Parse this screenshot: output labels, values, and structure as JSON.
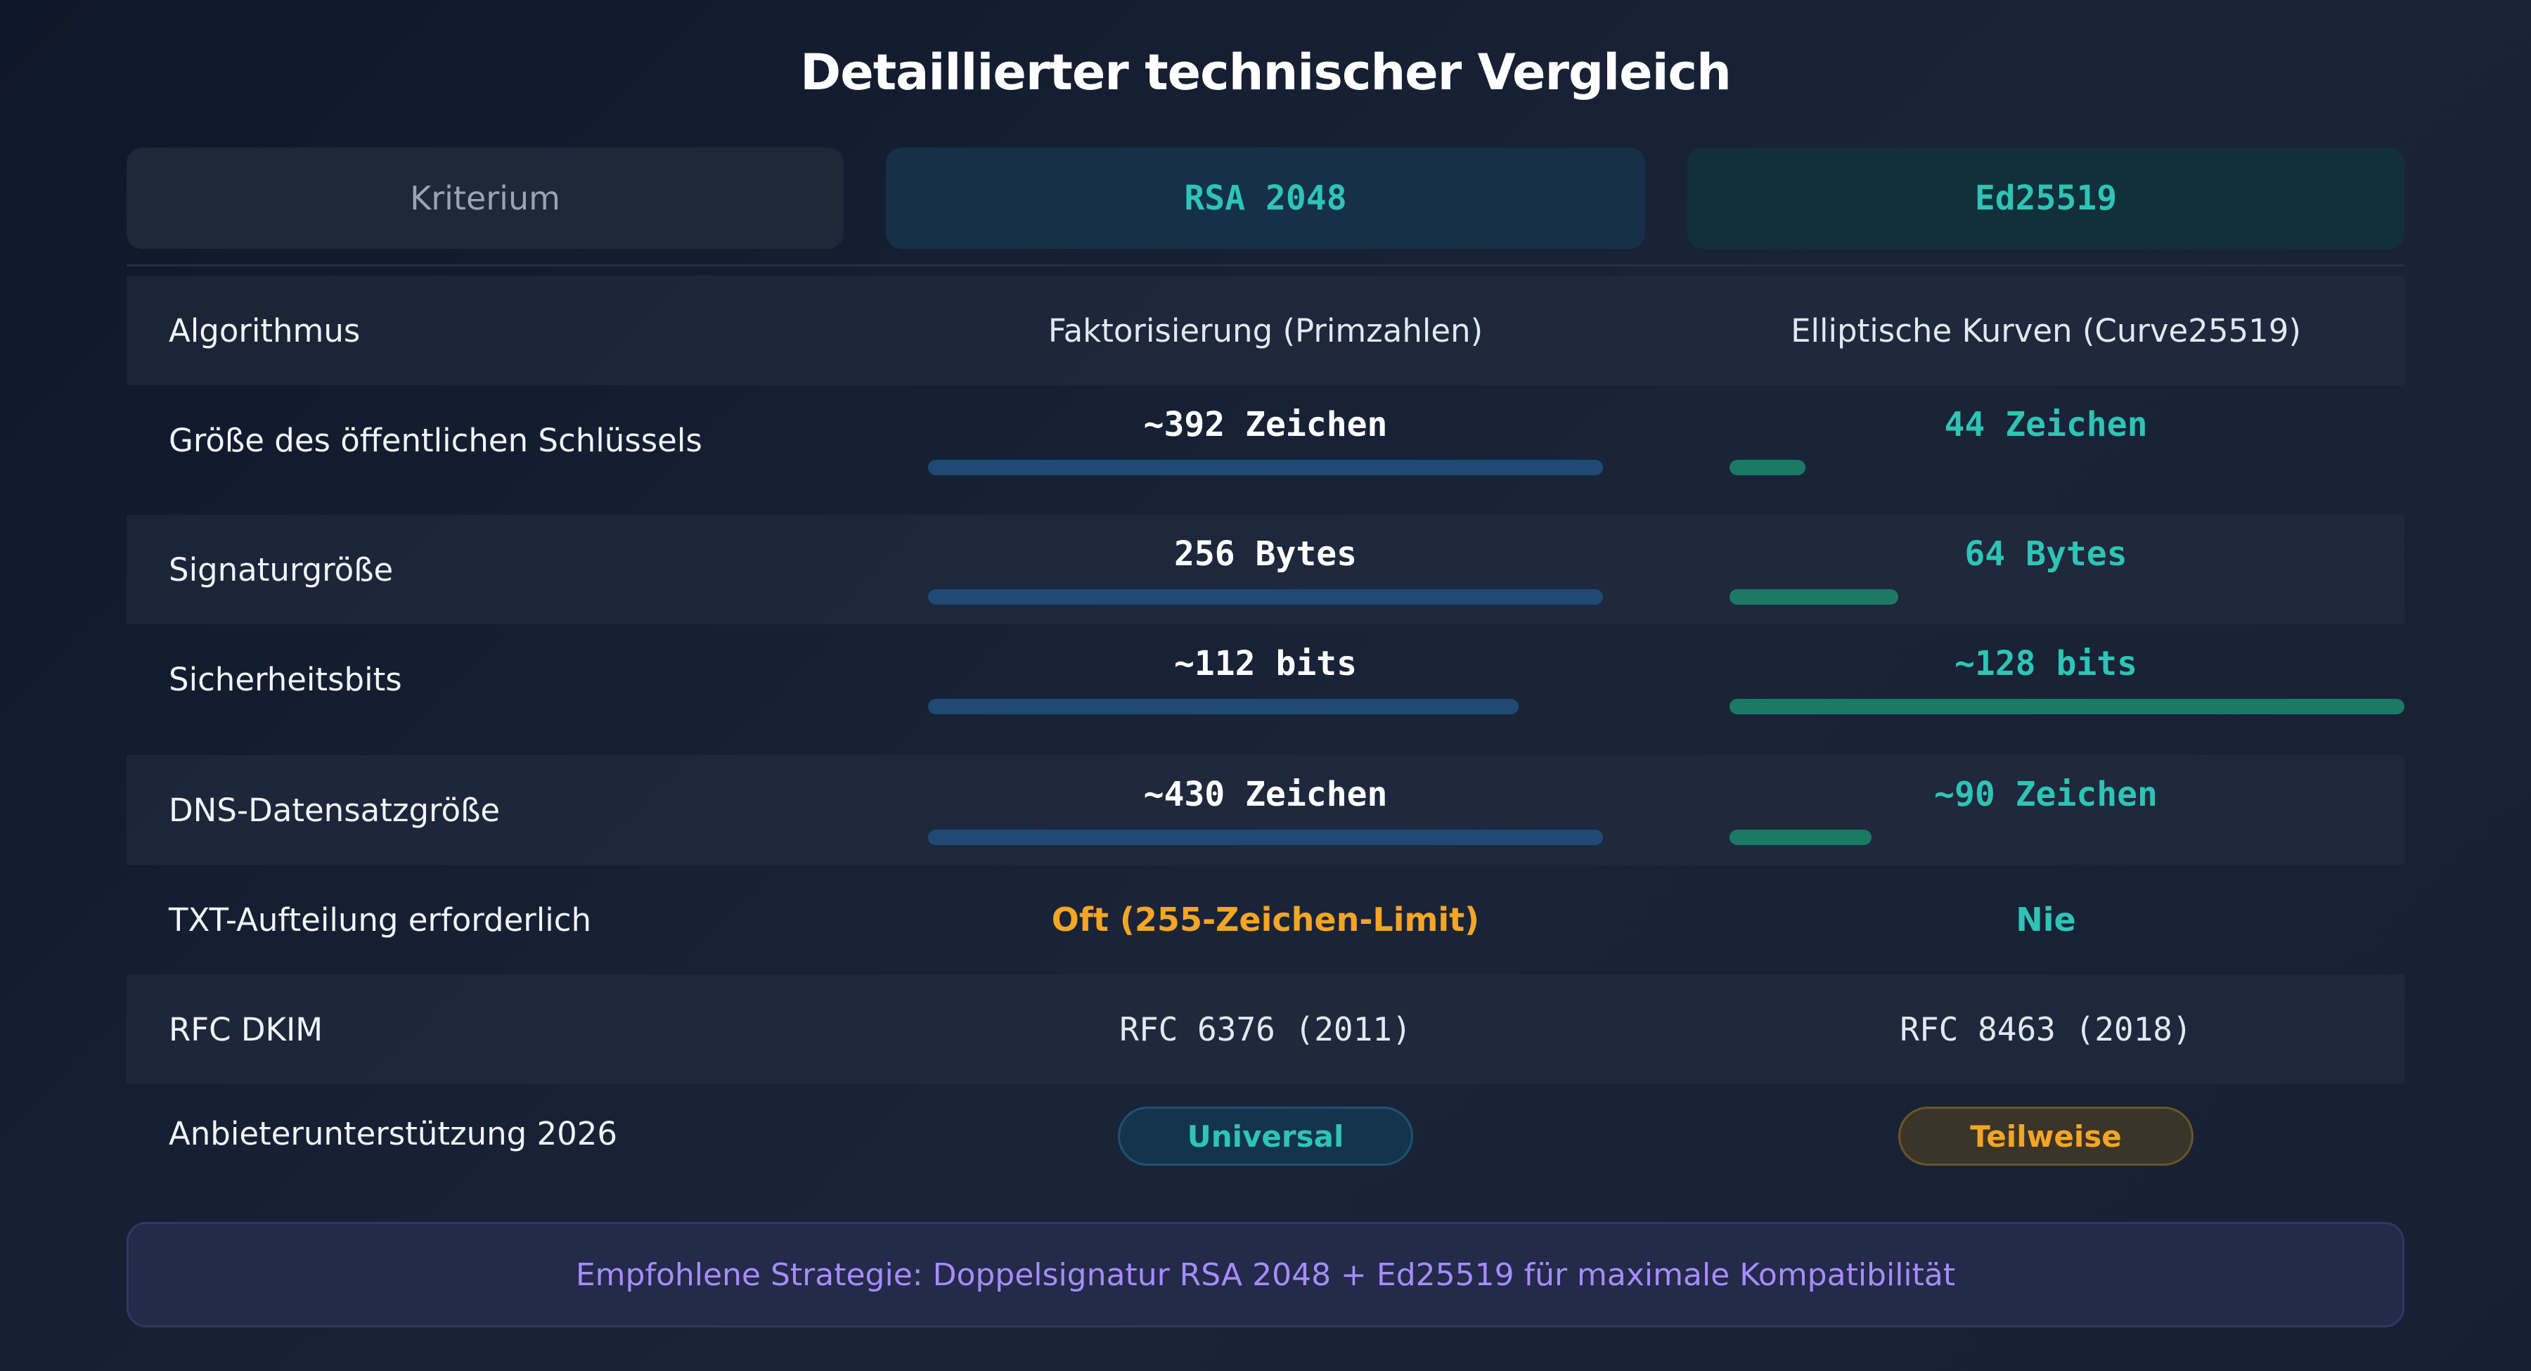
{
  "title": "Detaillierter technischer Vergleich",
  "header": {
    "criterion": "Kriterium",
    "rsa": "RSA 2048",
    "ed": "Ed25519"
  },
  "rows": [
    {
      "label": "Algorithmus",
      "rsa": "Faktorisierung (Primzahlen)",
      "ed": "Elliptische Kurven (Curve25519)"
    },
    {
      "label": "Größe des öffentlichen Schlüssels",
      "rsa": "~392 Zeichen",
      "ed": "44 Zeichen",
      "rsa_bar": 1.0,
      "ed_bar": 0.112
    },
    {
      "label": "Signaturgröße",
      "rsa": "256 Bytes",
      "ed": "64 Bytes",
      "rsa_bar": 1.0,
      "ed_bar": 0.25
    },
    {
      "label": "Sicherheitsbits",
      "rsa": "~112 bits",
      "ed": "~128 bits",
      "rsa_bar": 0.875,
      "ed_bar": 1.0
    },
    {
      "label": "DNS-Datensatzgröße",
      "rsa": "~430 Zeichen",
      "ed": "~90 Zeichen",
      "rsa_bar": 1.0,
      "ed_bar": 0.21
    },
    {
      "label": "TXT-Aufteilung erforderlich",
      "rsa": "Oft (255-Zeichen-Limit)",
      "ed": "Nie"
    },
    {
      "label": "RFC DKIM",
      "rsa": "RFC 6376 (2011)",
      "ed": "RFC 8463 (2018)"
    },
    {
      "label": "Anbieterunterstützung 2026",
      "rsa": "Universal",
      "ed": "Teilweise"
    }
  ],
  "footer": "Empfohlene Strategie: Doppelsignatur RSA 2048 + Ed25519 für maximale Kompatibilität",
  "colors": {
    "accent_teal": "#2ec4b6",
    "warning_orange": "#f5a524",
    "rsa_bar": "#1e4a73",
    "ed_bar": "#1a7a64",
    "footer_text": "#a78bfa"
  }
}
